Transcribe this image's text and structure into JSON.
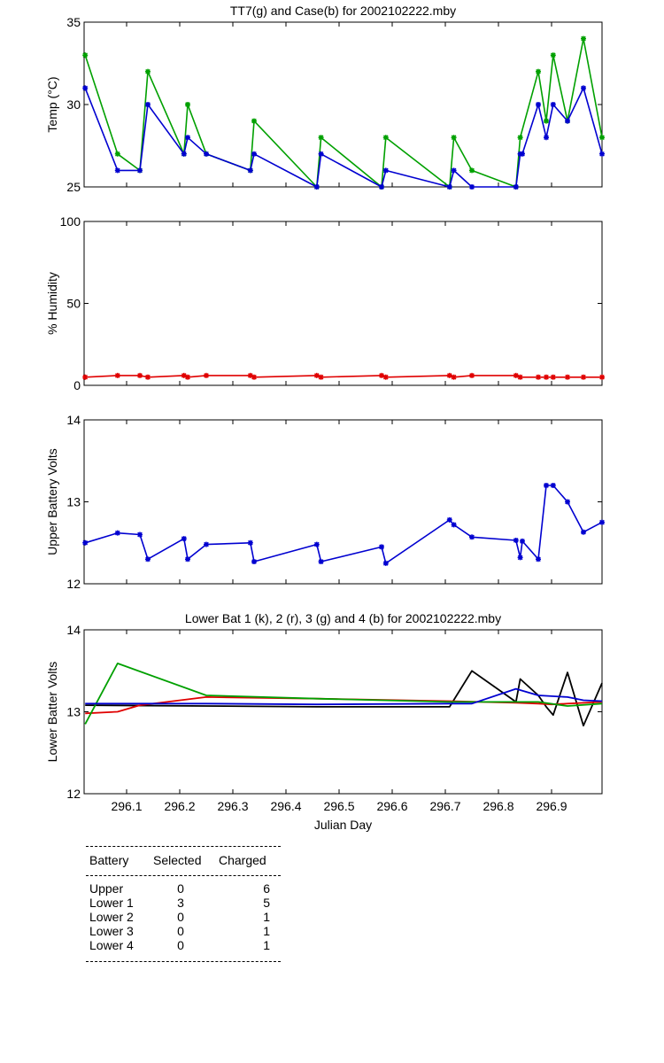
{
  "chart_data": [
    {
      "type": "line",
      "title": "TT7(g) and Case(b) for 2002102222.mby",
      "xlabel": "",
      "ylabel": "Temp  (°C)",
      "xlim": [
        296.02,
        296.995
      ],
      "ylim": [
        25,
        35
      ],
      "yticks": [
        25,
        30,
        35
      ],
      "markers": true,
      "series": [
        {
          "name": "TT7",
          "color": "#00a000",
          "x": [
            296.022,
            296.083,
            296.125,
            296.14,
            296.208,
            296.215,
            296.25,
            296.333,
            296.34,
            296.458,
            296.466,
            296.58,
            296.588,
            296.708,
            296.716,
            296.75,
            296.833,
            296.841,
            296.875,
            296.89,
            296.903,
            296.93,
            296.96,
            296.995
          ],
          "y": [
            33,
            27,
            26,
            32,
            27,
            30,
            27,
            26,
            29,
            25,
            28,
            25,
            28,
            25,
            28,
            26,
            25,
            28,
            32,
            29,
            33,
            29,
            34,
            28
          ]
        },
        {
          "name": "Case",
          "color": "#0000d0",
          "x": [
            296.022,
            296.083,
            296.125,
            296.14,
            296.208,
            296.215,
            296.25,
            296.333,
            296.34,
            296.458,
            296.466,
            296.58,
            296.588,
            296.708,
            296.716,
            296.75,
            296.833,
            296.841,
            296.845,
            296.875,
            296.89,
            296.903,
            296.93,
            296.96,
            296.995
          ],
          "y": [
            31,
            26,
            26,
            30,
            27,
            28,
            27,
            26,
            27,
            25,
            27,
            25,
            26,
            25,
            26,
            25,
            25,
            27,
            27,
            30,
            28,
            30,
            29,
            31,
            27
          ]
        }
      ]
    },
    {
      "type": "line",
      "title": "",
      "xlabel": "",
      "ylabel": "% Humidity",
      "xlim": [
        296.02,
        296.995
      ],
      "ylim": [
        0,
        100
      ],
      "yticks": [
        0,
        50,
        100
      ],
      "markers": true,
      "series": [
        {
          "name": "Humidity",
          "color": "#e00000",
          "x": [
            296.022,
            296.083,
            296.125,
            296.14,
            296.208,
            296.215,
            296.25,
            296.333,
            296.34,
            296.458,
            296.466,
            296.58,
            296.588,
            296.708,
            296.716,
            296.75,
            296.833,
            296.841,
            296.875,
            296.89,
            296.903,
            296.93,
            296.96,
            296.995
          ],
          "y": [
            5,
            6,
            6,
            5,
            6,
            5,
            6,
            6,
            5,
            6,
            5,
            6,
            5,
            6,
            5,
            6,
            6,
            5,
            5,
            5,
            5,
            5,
            5,
            5
          ]
        }
      ]
    },
    {
      "type": "line",
      "title": "",
      "xlabel": "",
      "ylabel": "Upper Battery Volts",
      "xlim": [
        296.02,
        296.995
      ],
      "ylim": [
        12,
        14
      ],
      "yticks": [
        12,
        13,
        14
      ],
      "markers": true,
      "series": [
        {
          "name": "Upper",
          "color": "#0000d0",
          "x": [
            296.022,
            296.083,
            296.125,
            296.14,
            296.208,
            296.215,
            296.25,
            296.333,
            296.34,
            296.458,
            296.466,
            296.58,
            296.588,
            296.708,
            296.716,
            296.75,
            296.833,
            296.841,
            296.845,
            296.875,
            296.89,
            296.903,
            296.93,
            296.96,
            296.995
          ],
          "y": [
            12.5,
            12.62,
            12.6,
            12.3,
            12.55,
            12.3,
            12.48,
            12.5,
            12.27,
            12.48,
            12.27,
            12.45,
            12.25,
            12.78,
            12.72,
            12.57,
            12.53,
            12.32,
            12.52,
            12.3,
            13.2,
            13.2,
            13.0,
            12.63,
            12.75
          ]
        }
      ]
    },
    {
      "type": "line",
      "title": "Lower Bat 1 (k), 2 (r), 3 (g) and 4 (b) for 2002102222.mby",
      "xlabel": "Julian Day",
      "ylabel": "Lower Batter Volts",
      "xlim": [
        296.02,
        296.995
      ],
      "ylim": [
        12,
        14
      ],
      "yticks": [
        12,
        13,
        14
      ],
      "xticks": [
        296.1,
        296.2,
        296.3,
        296.4,
        296.5,
        296.6,
        296.7,
        296.8,
        296.9
      ],
      "markers": false,
      "series": [
        {
          "name": "Lower Bat 1",
          "color": "#000000",
          "x": [
            296.022,
            296.25,
            296.458,
            296.708,
            296.75,
            296.833,
            296.841,
            296.875,
            296.89,
            296.903,
            296.93,
            296.96,
            296.995
          ],
          "y": [
            13.08,
            13.07,
            13.06,
            13.06,
            13.5,
            13.12,
            13.4,
            13.2,
            13.06,
            12.96,
            13.48,
            12.83,
            13.35
          ]
        },
        {
          "name": "Lower Bat 2",
          "color": "#e00000",
          "x": [
            296.022,
            296.083,
            296.125,
            296.25,
            296.458,
            296.708,
            296.833,
            296.875,
            296.9,
            296.93,
            296.995
          ],
          "y": [
            12.98,
            13.0,
            13.08,
            13.18,
            13.16,
            13.13,
            13.11,
            13.1,
            13.09,
            13.1,
            13.12
          ]
        },
        {
          "name": "Lower Bat 3",
          "color": "#00a000",
          "x": [
            296.022,
            296.083,
            296.25,
            296.458,
            296.708,
            296.833,
            296.875,
            296.93,
            296.995
          ],
          "y": [
            12.85,
            13.59,
            13.2,
            13.16,
            13.12,
            13.12,
            13.12,
            13.07,
            13.1
          ]
        },
        {
          "name": "Lower Bat 4",
          "color": "#0000d0",
          "x": [
            296.022,
            296.25,
            296.458,
            296.708,
            296.75,
            296.833,
            296.875,
            296.93,
            296.96,
            296.995
          ],
          "y": [
            13.1,
            13.1,
            13.09,
            13.1,
            13.1,
            13.28,
            13.2,
            13.18,
            13.14,
            13.13
          ]
        }
      ]
    }
  ],
  "battery_table": {
    "headers": [
      "Battery",
      "Selected",
      "Charged"
    ],
    "rows": [
      [
        "Upper",
        "0",
        "6"
      ],
      [
        "Lower 1",
        "3",
        "5"
      ],
      [
        "Lower 2",
        "0",
        "1"
      ],
      [
        "Lower 3",
        "0",
        "1"
      ],
      [
        "Lower 4",
        "0",
        "1"
      ]
    ]
  }
}
